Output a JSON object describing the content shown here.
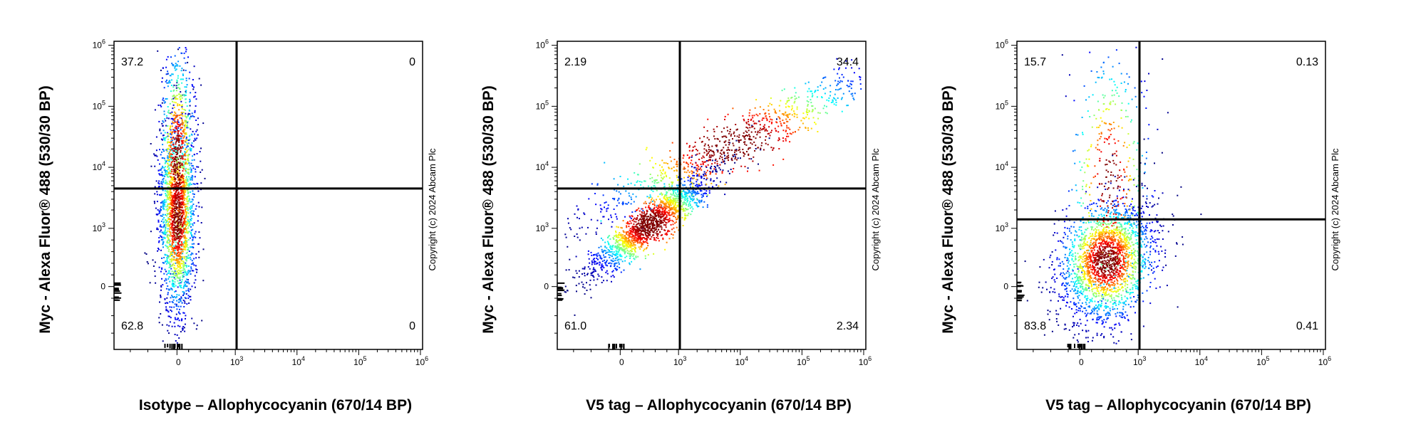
{
  "chart_data": [
    {
      "type": "scatter",
      "subtype": "flow-cytometry-density-plot",
      "xlabel": "Isotype – Allophycocyanin (670/14 BP)",
      "ylabel": "Myc - Alexa Fluor® 488 (530/30 BP)",
      "x_scale": "biexponential",
      "y_scale": "biexponential",
      "x_ticks": [
        "0",
        "10^3",
        "10^4",
        "10^5",
        "10^6"
      ],
      "y_ticks": [
        "0",
        "10^3",
        "10^4",
        "10^5",
        "10^6"
      ],
      "gate": {
        "x": 1050,
        "y": 4500
      },
      "quadrants": {
        "upper_left": "37.2",
        "upper_right": "0",
        "lower_left": "62.8",
        "lower_right": "0"
      },
      "copyright": "Copyright (c) 2024 Abcam Plc",
      "populations": [
        {
          "x_center": 0,
          "x_spread": 0.06,
          "y_center": 1500,
          "y_spread": 0.32,
          "corr": 0,
          "weight": 0.6
        },
        {
          "x_center": 0,
          "x_spread": 0.06,
          "y_center": 12000,
          "y_spread": 0.4,
          "corr": 0,
          "weight": 0.4
        }
      ]
    },
    {
      "type": "scatter",
      "subtype": "flow-cytometry-density-plot",
      "xlabel": "V5 tag – Allophycocyanin (670/14 BP)",
      "ylabel": "Myc - Alexa Fluor® 488 (530/30 BP)",
      "x_scale": "biexponential",
      "y_scale": "biexponential",
      "x_ticks": [
        "0",
        "10^3",
        "10^4",
        "10^5",
        "10^6"
      ],
      "y_ticks": [
        "0",
        "10^3",
        "10^4",
        "10^5",
        "10^6"
      ],
      "gate": {
        "x": 1050,
        "y": 4500
      },
      "quadrants": {
        "upper_left": "2.19",
        "upper_right": "34.4",
        "lower_left": "61.0",
        "lower_right": "2.34"
      },
      "copyright": "Copyright (c) 2024 Abcam Plc",
      "populations": [
        {
          "x_center": 500,
          "x_spread": 0.11,
          "y_center": 1200,
          "y_spread": 0.18,
          "corr": 0.92,
          "weight": 0.62
        },
        {
          "x_center": 8000,
          "x_spread": 0.28,
          "y_center": 25000,
          "y_spread": 0.3,
          "corr": 0.95,
          "weight": 0.38
        }
      ]
    },
    {
      "type": "scatter",
      "subtype": "flow-cytometry-density-plot",
      "xlabel": "V5 tag – Allophycocyanin (670/14 BP)",
      "ylabel": "Myc - Alexa Fluor® 488 (530/30 BP)",
      "x_scale": "biexponential",
      "y_scale": "biexponential",
      "x_ticks": [
        "0",
        "10^3",
        "10^4",
        "10^5",
        "10^6"
      ],
      "y_ticks": [
        "0",
        "10^3",
        "10^4",
        "10^5",
        "10^6"
      ],
      "gate": {
        "x": 1050,
        "y": 1400
      },
      "quadrants": {
        "upper_left": "15.7",
        "upper_right": "0.13",
        "lower_left": "83.8",
        "lower_right": "0.41"
      },
      "copyright": "Copyright (c) 2024 Abcam Plc",
      "populations": [
        {
          "x_center": 450,
          "x_spread": 0.08,
          "y_center": 450,
          "y_spread": 0.2,
          "corr": 0.3,
          "weight": 0.8
        },
        {
          "x_center": 500,
          "x_spread": 0.07,
          "y_center": 6000,
          "y_spread": 0.45,
          "corr": 0,
          "weight": 0.2
        }
      ]
    }
  ]
}
